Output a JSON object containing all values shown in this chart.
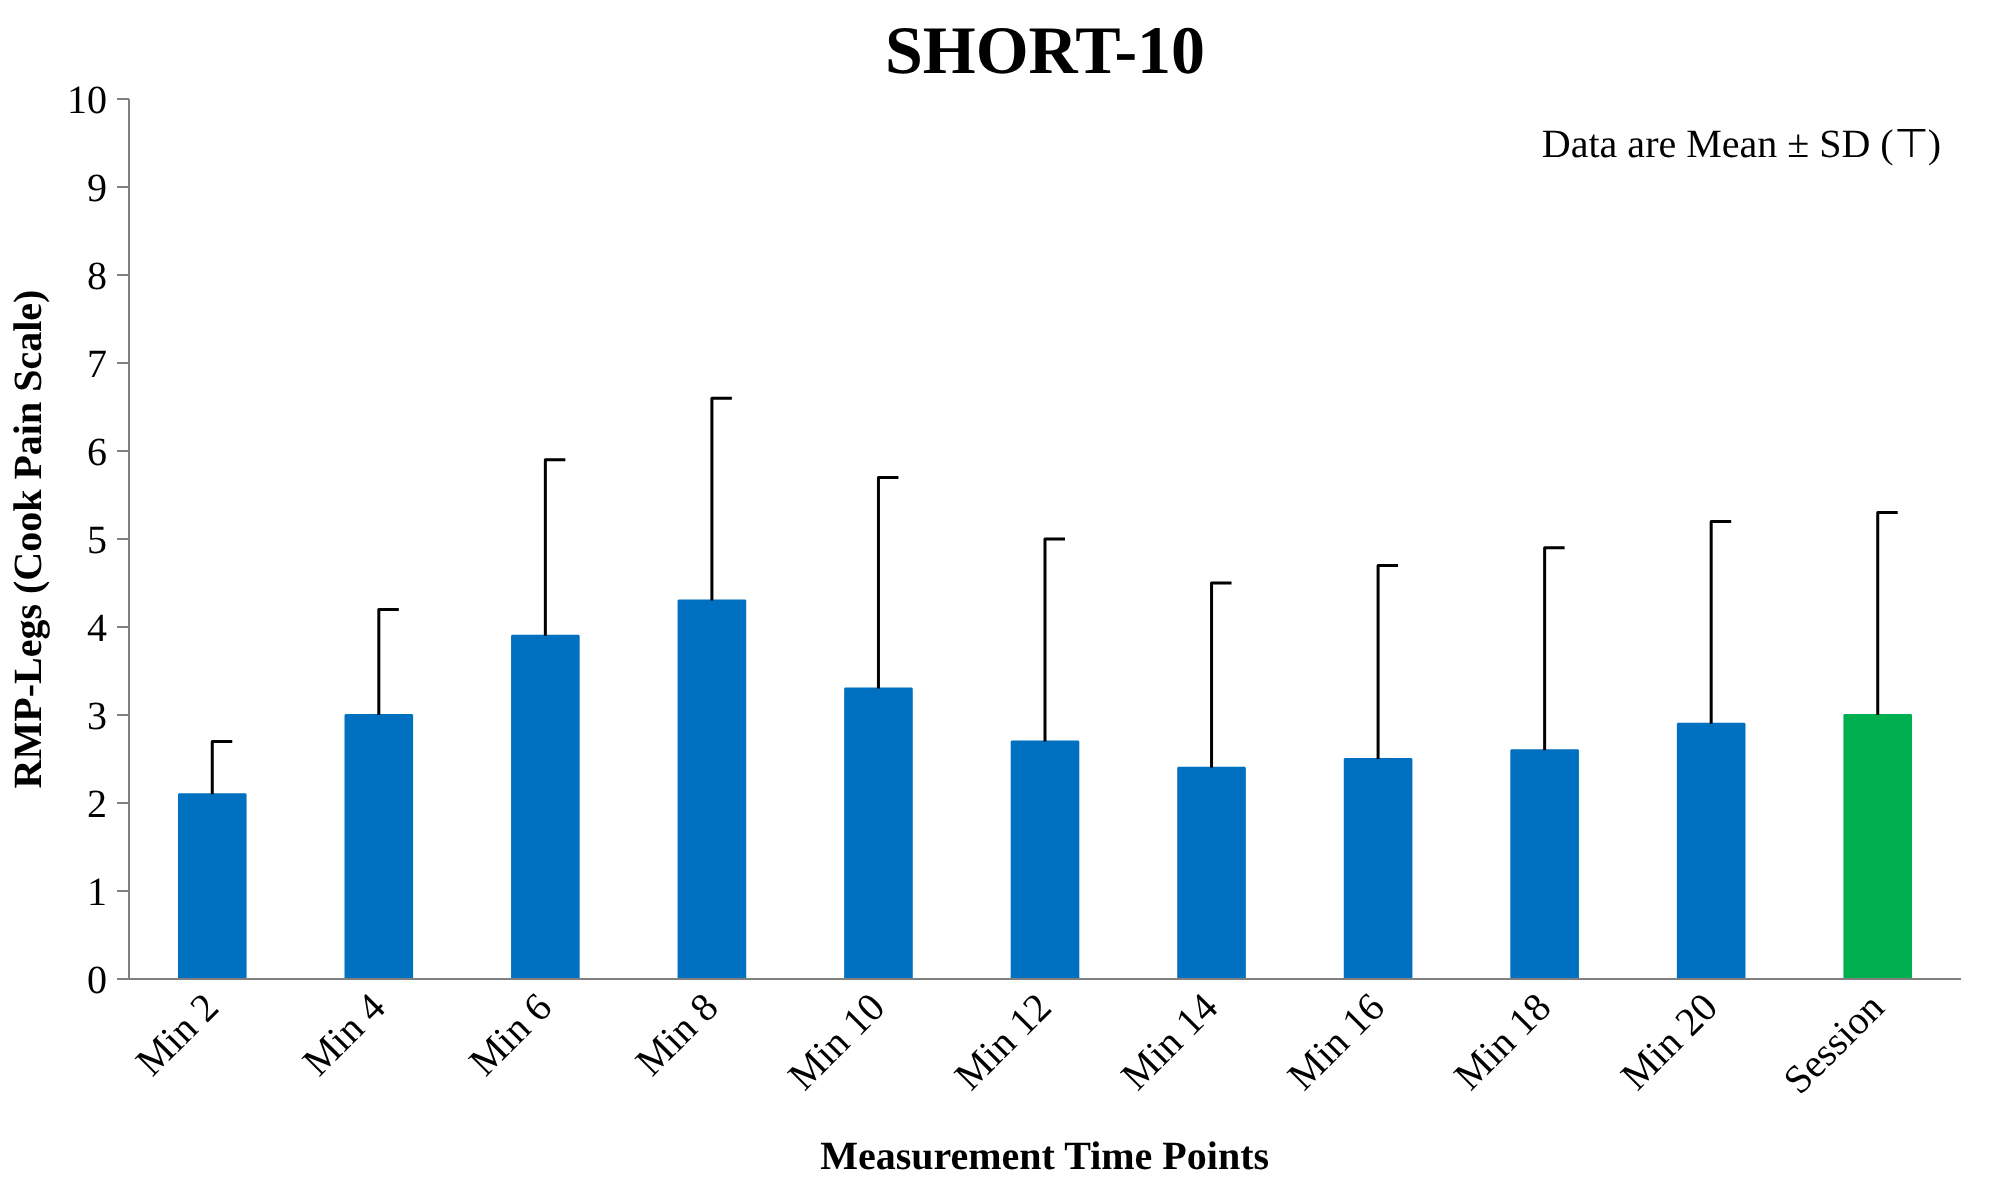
{
  "chart_data": {
    "type": "bar",
    "title": "SHORT-10",
    "xlabel": "Measurement Time Points",
    "ylabel": "RMP-Legs (Cook Pain Scale)",
    "categories": [
      "Min 2",
      "Min 4",
      "Min 6",
      "Min 8",
      "Min 10",
      "Min 12",
      "Min 14",
      "Min 16",
      "Min 18",
      "Min 20",
      "Session"
    ],
    "values": [
      2.1,
      3.0,
      3.9,
      4.3,
      3.3,
      2.7,
      2.4,
      2.5,
      2.6,
      2.9,
      3.0
    ],
    "colors": [
      "#0070c0",
      "#0070c0",
      "#0070c0",
      "#0070c0",
      "#0070c0",
      "#0070c0",
      "#0070c0",
      "#0070c0",
      "#0070c0",
      "#0070c0",
      "#00b050"
    ],
    "errors": [
      [
        2.1,
        2.7
      ],
      [
        3.0,
        4.2
      ],
      [
        3.9,
        5.9
      ],
      [
        4.3,
        6.6
      ],
      [
        3.3,
        5.7
      ],
      [
        2.7,
        5.0
      ],
      [
        2.4,
        4.5
      ],
      [
        2.5,
        4.7
      ],
      [
        2.6,
        4.9
      ],
      [
        2.9,
        5.2
      ],
      [
        3.0,
        5.3
      ]
    ],
    "ylim": [
      0,
      10
    ],
    "yticks": [
      0,
      1,
      2,
      3,
      4,
      5,
      6,
      7,
      8,
      9,
      10
    ],
    "grid": false,
    "annotations": [
      "Data are Mean ± SD (⊤)"
    ]
  }
}
